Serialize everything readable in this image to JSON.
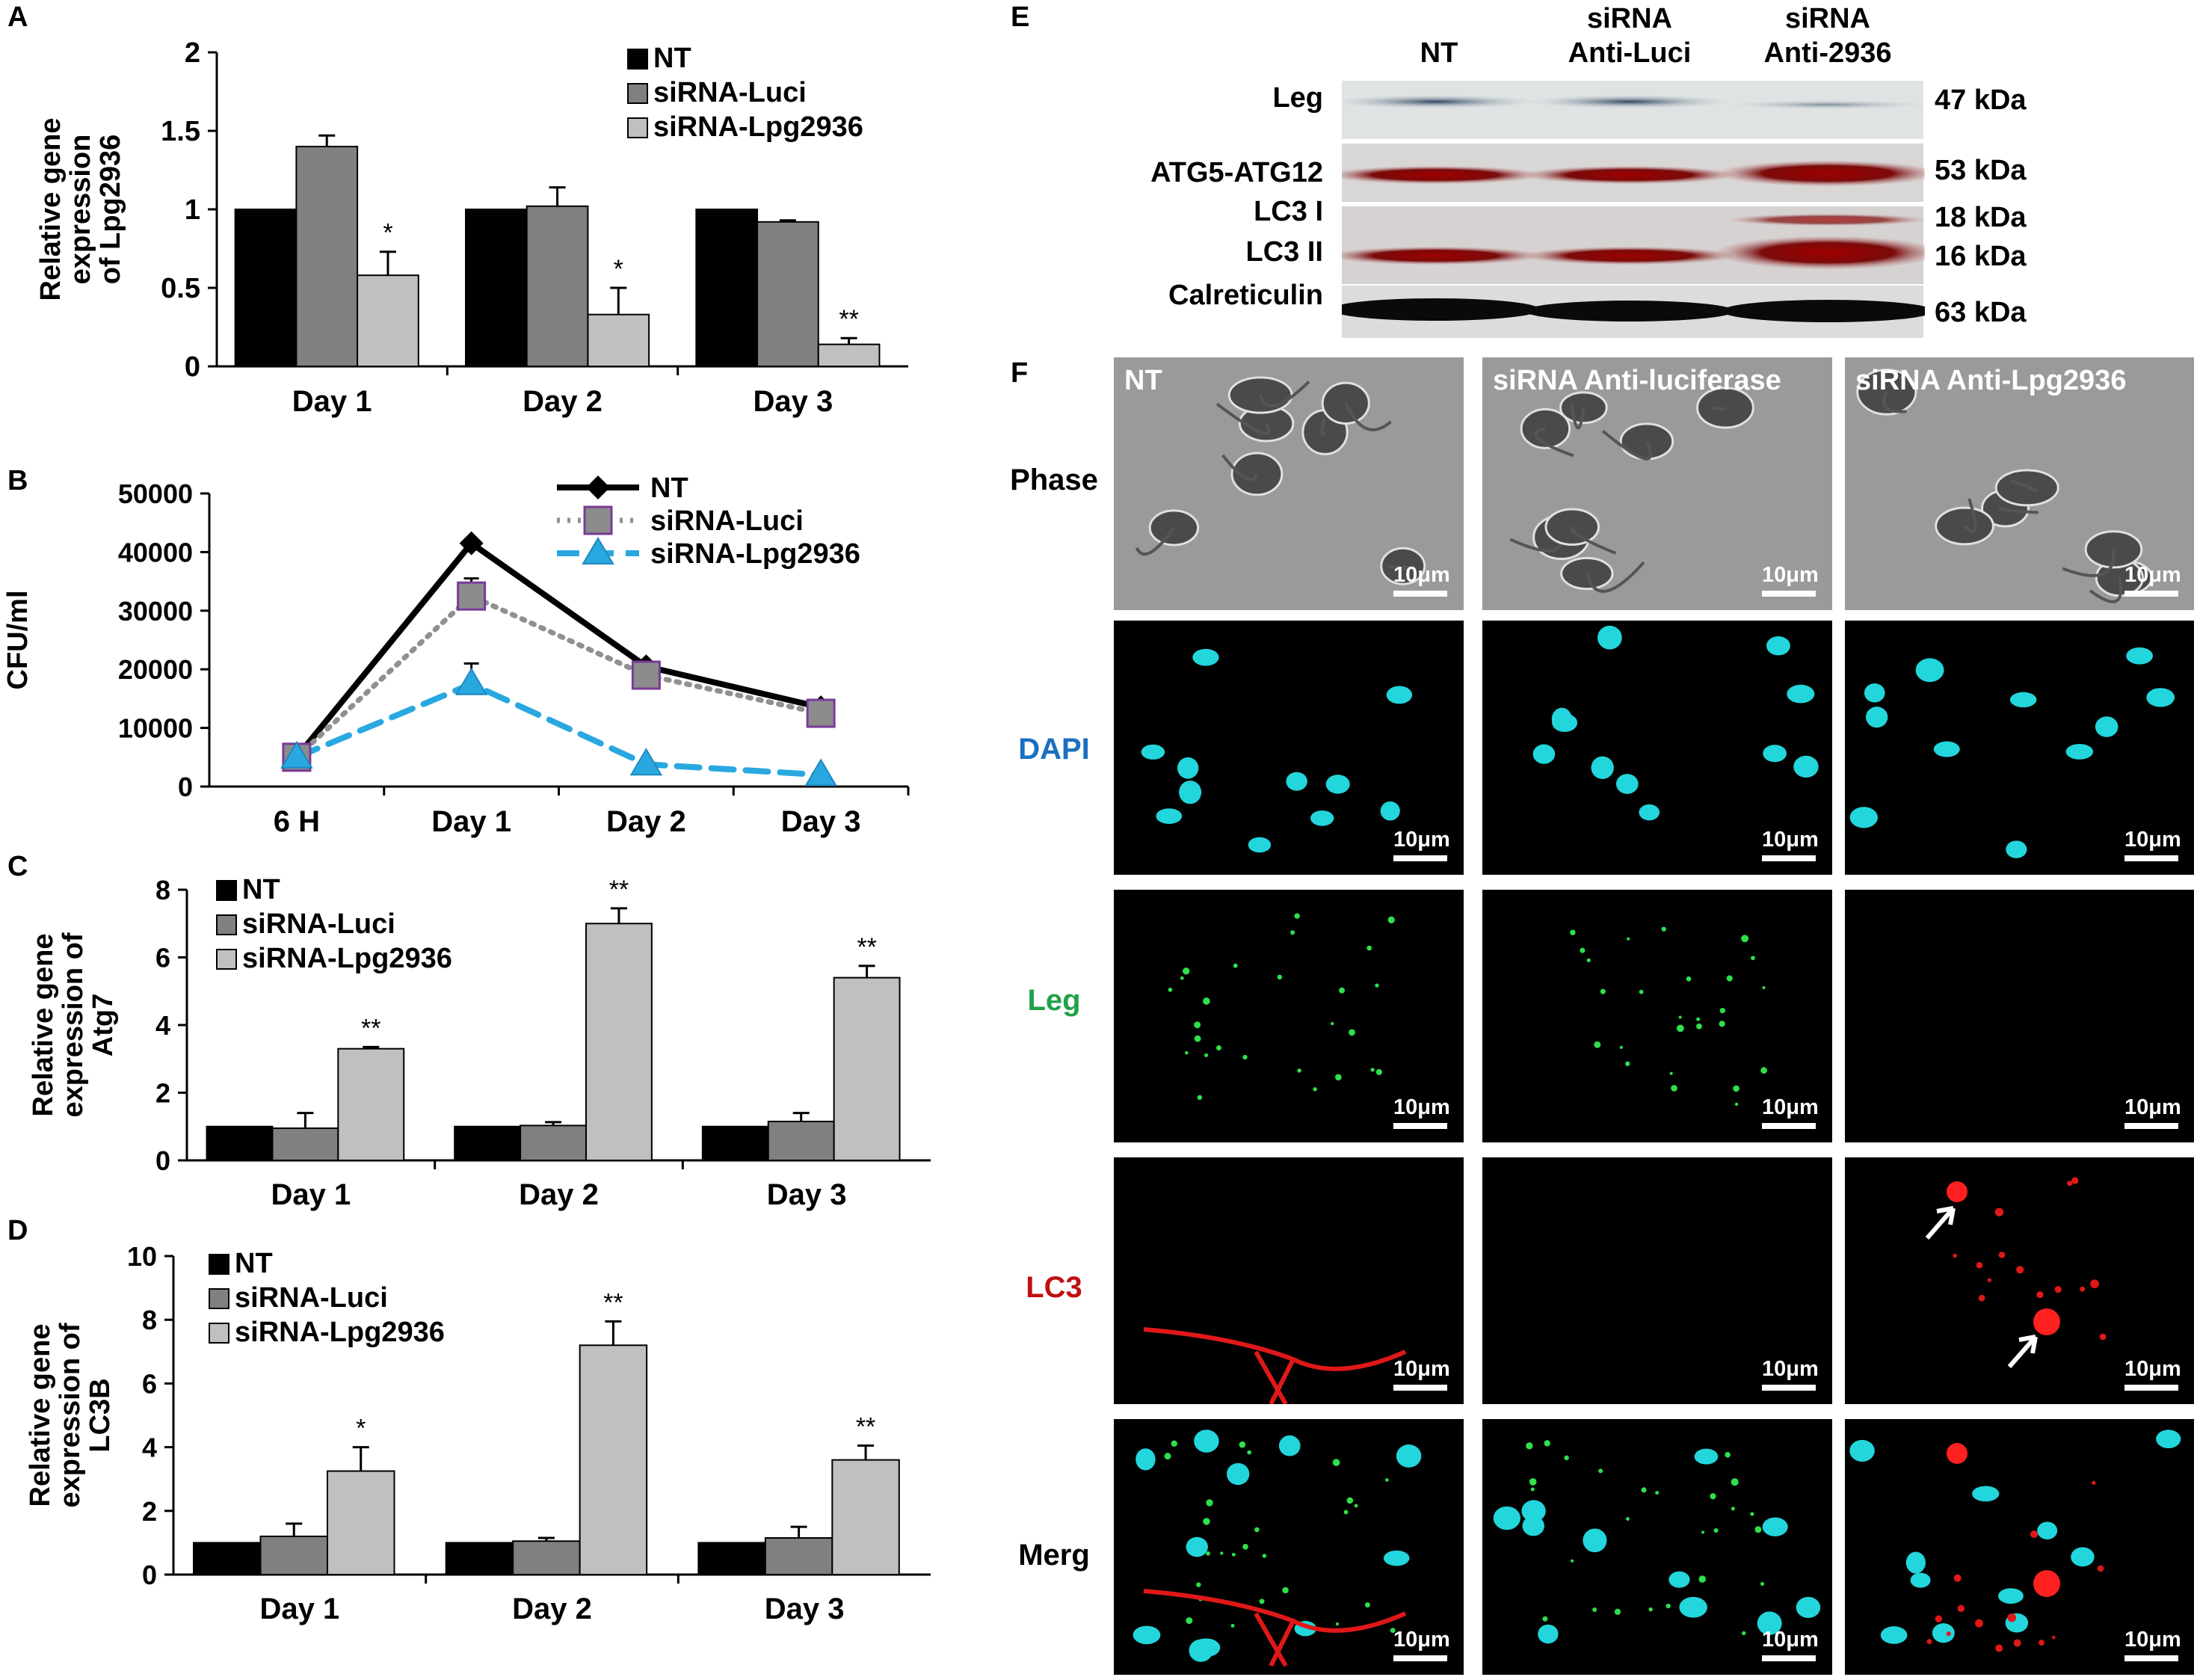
{
  "colors": {
    "nt": "#000000",
    "luci": "#808080",
    "lpg": "#c0c0c0",
    "lpg_line": "#29a8e0",
    "dapi_label": "#1a6fbf",
    "leg_label": "#21a04a",
    "lc3_label": "#c01010"
  },
  "panel_letters": [
    "A",
    "B",
    "C",
    "D",
    "E",
    "F"
  ],
  "chart_data": [
    {
      "panel": "A",
      "type": "bar",
      "ylabel": [
        "Relative gene",
        "expression",
        "of Lpg2936"
      ],
      "ylim": [
        0,
        2
      ],
      "yticks": [
        "0",
        "0.5",
        "1",
        "1.5",
        "2"
      ],
      "categories": [
        "Day 1",
        "Day 2",
        "Day 3"
      ],
      "series": [
        {
          "name": "NT",
          "values": [
            1.0,
            1.0,
            1.0
          ],
          "errors": [
            0,
            0,
            0
          ]
        },
        {
          "name": "siRNA-Luci",
          "values": [
            1.4,
            1.02,
            0.92
          ],
          "errors": [
            0.07,
            0.12,
            0.01
          ]
        },
        {
          "name": "siRNA-Lpg2936",
          "values": [
            0.58,
            0.33,
            0.14
          ],
          "errors": [
            0.15,
            0.17,
            0.04
          ]
        }
      ],
      "significance": [
        "*",
        "*",
        "**"
      ],
      "legend_position": "top-right"
    },
    {
      "panel": "B",
      "type": "line",
      "ylabel": [
        "CFU/ml"
      ],
      "ylim": [
        0,
        50000
      ],
      "yticks": [
        "0",
        "10000",
        "20000",
        "30000",
        "40000",
        "50000"
      ],
      "categories": [
        "6 H",
        "Day 1",
        "Day 2",
        "Day 3"
      ],
      "series": [
        {
          "name": "NT",
          "values": [
            5000,
            41500,
            20500,
            13500
          ],
          "errors": [
            0,
            0,
            800,
            800
          ]
        },
        {
          "name": "siRNA-Luci",
          "values": [
            5000,
            32500,
            19000,
            12500
          ],
          "errors": [
            0,
            3000,
            0,
            0
          ]
        },
        {
          "name": "siRNA-Lpg2936",
          "values": [
            5000,
            17500,
            3800,
            2000
          ],
          "errors": [
            0,
            3500,
            0,
            0
          ]
        }
      ],
      "legend_position": "top-right"
    },
    {
      "panel": "C",
      "type": "bar",
      "ylabel": [
        "Relative gene",
        "expression of",
        "Atg7"
      ],
      "ylim": [
        0,
        8
      ],
      "yticks": [
        "0",
        "2",
        "4",
        "6",
        "8"
      ],
      "categories": [
        "Day 1",
        "Day 2",
        "Day 3"
      ],
      "series": [
        {
          "name": "NT",
          "values": [
            1.0,
            1.0,
            1.0
          ],
          "errors": [
            0,
            0,
            0
          ]
        },
        {
          "name": "siRNA-Luci",
          "values": [
            0.95,
            1.03,
            1.15
          ],
          "errors": [
            0.45,
            0.1,
            0.25
          ]
        },
        {
          "name": "siRNA-Lpg2936",
          "values": [
            3.3,
            7.0,
            5.4
          ],
          "errors": [
            0.05,
            0.45,
            0.35
          ]
        }
      ],
      "significance": [
        "**",
        "**",
        "**"
      ],
      "legend_position": "top-left"
    },
    {
      "panel": "D",
      "type": "bar",
      "ylabel": [
        "Relative gene",
        "expression of",
        "LC3B"
      ],
      "ylim": [
        0,
        10
      ],
      "yticks": [
        "0",
        "2",
        "4",
        "6",
        "8",
        "10"
      ],
      "categories": [
        "Day 1",
        "Day 2",
        "Day 3"
      ],
      "series": [
        {
          "name": "NT",
          "values": [
            1.0,
            1.0,
            1.0
          ],
          "errors": [
            0,
            0,
            0
          ]
        },
        {
          "name": "siRNA-Luci",
          "values": [
            1.2,
            1.05,
            1.15
          ],
          "errors": [
            0.4,
            0.1,
            0.35
          ]
        },
        {
          "name": "siRNA-Lpg2936",
          "values": [
            3.25,
            7.2,
            3.6
          ],
          "errors": [
            0.75,
            0.75,
            0.45
          ]
        }
      ],
      "significance": [
        "*",
        "**",
        "**"
      ],
      "legend_position": "top-left"
    }
  ],
  "panel_e": {
    "columns": [
      [
        "NT"
      ],
      [
        "siRNA",
        "Anti-Luci"
      ],
      [
        "siRNA",
        "Anti-2936"
      ]
    ],
    "rows": [
      {
        "label": "Leg",
        "size": "47 kDa"
      },
      {
        "label": "ATG5-ATG12",
        "size": "53 kDa"
      },
      {
        "label": "LC3 I",
        "size": "18 kDa"
      },
      {
        "label": "LC3 II",
        "size": "16 kDa"
      },
      {
        "label": "Calreticulin",
        "size": "63 kDa"
      }
    ]
  },
  "panel_f": {
    "column_titles": [
      "NT",
      "siRNA Anti-luciferase",
      "siRNA Anti-Lpg2936"
    ],
    "row_labels": [
      "Phase",
      "DAPI",
      "Leg",
      "LC3",
      "Merg"
    ],
    "scale_bar": "10μm"
  }
}
